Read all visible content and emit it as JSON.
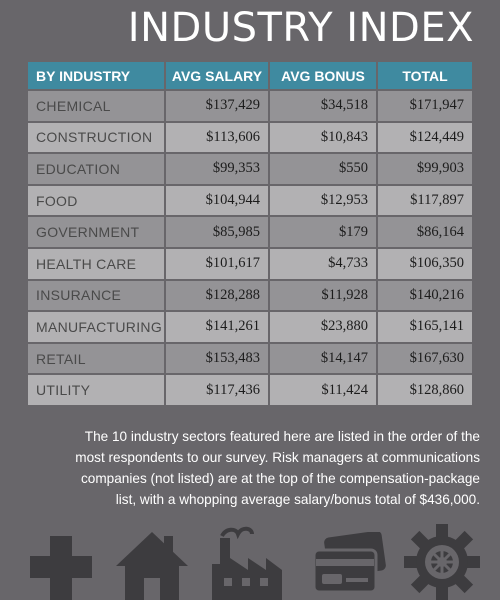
{
  "title": "INDUSTRY INDEX",
  "table": {
    "headers": [
      "BY INDUSTRY",
      "AVG SALARY",
      "AVG BONUS",
      "TOTAL"
    ],
    "rows": [
      {
        "industry": "CHEMICAL",
        "salary": "$137,429",
        "bonus": "$34,518",
        "total": "$171,947"
      },
      {
        "industry": "CONSTRUCTION",
        "salary": "$113,606",
        "bonus": "$10,843",
        "total": "$124,449"
      },
      {
        "industry": "EDUCATION",
        "salary": "$99,353",
        "bonus": "$550",
        "total": "$99,903"
      },
      {
        "industry": "FOOD",
        "salary": "$104,944",
        "bonus": "$12,953",
        "total": "$117,897"
      },
      {
        "industry": "GOVERNMENT",
        "salary": "$85,985",
        "bonus": "$179",
        "total": "$86,164"
      },
      {
        "industry": "HEALTH CARE",
        "salary": "$101,617",
        "bonus": "$4,733",
        "total": "$106,350"
      },
      {
        "industry": "INSURANCE",
        "salary": "$128,288",
        "bonus": "$11,928",
        "total": "$140,216"
      },
      {
        "industry": "MANUFACTURING",
        "salary": "$141,261",
        "bonus": "$23,880",
        "total": "$165,141"
      },
      {
        "industry": "RETAIL",
        "salary": "$153,483",
        "bonus": "$14,147",
        "total": "$167,630"
      },
      {
        "industry": "UTILITY",
        "salary": "$117,436",
        "bonus": "$11,424",
        "total": "$128,860"
      }
    ]
  },
  "note_lines": [
    "The 10 industry sectors featured here are listed in the order of the",
    "most respondents to our survey. Risk managers at communications",
    "companies (not listed) are at the top of the compensation-package",
    "list, with a whopping average salary/bonus total of $436,000."
  ],
  "icons": [
    "medical-cross-icon",
    "house-icon",
    "factory-icon",
    "credit-card-icon",
    "gear-icon"
  ],
  "colors": {
    "background": "#68666a",
    "header": "#3f8aa0",
    "row_dark": "#949396",
    "row_light": "#b2b1b3",
    "icon": "#3d3c3f"
  }
}
